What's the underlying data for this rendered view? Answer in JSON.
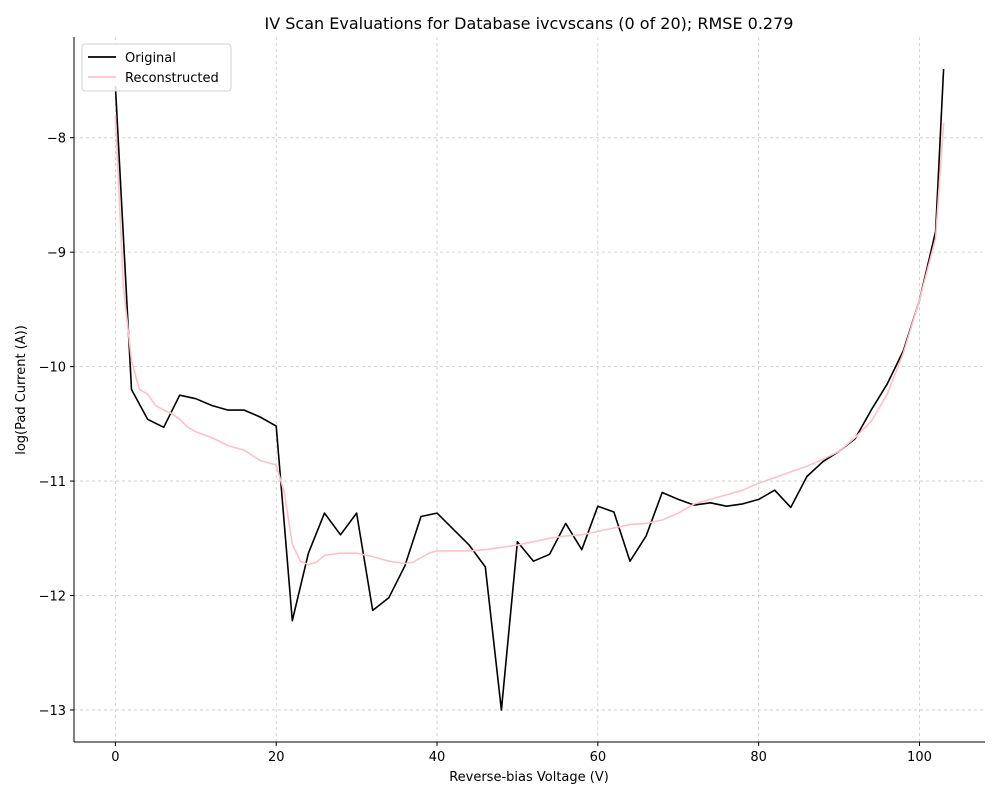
{
  "chart_data": {
    "type": "line",
    "title": "IV Scan Evaluations for Database ivcvscans (0 of 20); RMSE 0.279",
    "xlabel": "Reverse-bias Voltage (V)",
    "ylabel": "log(Pad Current (A))",
    "xlim": [
      -5.15,
      108.15
    ],
    "ylim": [
      -13.28,
      -7.12
    ],
    "xticks": [
      0,
      20,
      40,
      60,
      80,
      100
    ],
    "yticks": [
      -13,
      -12,
      -11,
      -10,
      -9,
      -8
    ],
    "xtick_labels": [
      "0",
      "20",
      "40",
      "60",
      "80",
      "100"
    ],
    "ytick_labels": [
      "−13",
      "−12",
      "−11",
      "−10",
      "−9",
      "−8"
    ],
    "grid": true,
    "legend_position": "top-left",
    "series": [
      {
        "name": "Original",
        "color": "#000000",
        "x": [
          0,
          2,
          4,
          6,
          8,
          10,
          12,
          14,
          16,
          18,
          20,
          22,
          24,
          26,
          28,
          30,
          32,
          34,
          36,
          38,
          40,
          42,
          44,
          46,
          48,
          50,
          52,
          54,
          56,
          58,
          60,
          62,
          64,
          66,
          68,
          70,
          72,
          74,
          76,
          78,
          80,
          82,
          84,
          86,
          88,
          90,
          92,
          94,
          96,
          98,
          100,
          102,
          103
        ],
        "y": [
          -7.55,
          -10.2,
          -10.46,
          -10.53,
          -10.25,
          -10.28,
          -10.34,
          -10.38,
          -10.38,
          -10.44,
          -10.52,
          -12.22,
          -11.63,
          -11.28,
          -11.47,
          -11.28,
          -12.13,
          -12.02,
          -11.74,
          -11.31,
          -11.28,
          -11.42,
          -11.56,
          -11.75,
          -13.0,
          -11.53,
          -11.7,
          -11.64,
          -11.37,
          -11.6,
          -11.22,
          -11.27,
          -11.7,
          -11.48,
          -11.1,
          -11.16,
          -11.21,
          -11.19,
          -11.22,
          -11.2,
          -11.16,
          -11.08,
          -11.23,
          -10.96,
          -10.83,
          -10.74,
          -10.63,
          -10.38,
          -10.15,
          -9.86,
          -9.42,
          -8.82,
          -7.4
        ]
      },
      {
        "name": "Reconstructed",
        "color": "#ffc0cb",
        "x": [
          0,
          1,
          2,
          3,
          4,
          5,
          6,
          7,
          8,
          9,
          10,
          12,
          14,
          16,
          18,
          19,
          20,
          21,
          22,
          23,
          24,
          25,
          26,
          28,
          30,
          32,
          34,
          36,
          37,
          38,
          39,
          40,
          42,
          44,
          46,
          48,
          50,
          52,
          54,
          56,
          58,
          60,
          62,
          64,
          66,
          68,
          70,
          72,
          74,
          76,
          78,
          80,
          82,
          84,
          86,
          88,
          90,
          92,
          94,
          96,
          98,
          100,
          102,
          103
        ],
        "y": [
          -7.8,
          -9.3,
          -9.95,
          -10.2,
          -10.24,
          -10.34,
          -10.38,
          -10.41,
          -10.46,
          -10.53,
          -10.57,
          -10.62,
          -10.69,
          -10.73,
          -10.82,
          -10.84,
          -10.86,
          -11.1,
          -11.55,
          -11.7,
          -11.73,
          -11.71,
          -11.65,
          -11.63,
          -11.63,
          -11.66,
          -11.7,
          -11.72,
          -11.71,
          -11.67,
          -11.63,
          -11.61,
          -11.61,
          -11.61,
          -11.6,
          -11.58,
          -11.56,
          -11.53,
          -11.5,
          -11.48,
          -11.47,
          -11.44,
          -11.41,
          -11.38,
          -11.37,
          -11.34,
          -11.28,
          -11.2,
          -11.16,
          -11.12,
          -11.08,
          -11.02,
          -10.97,
          -10.92,
          -10.87,
          -10.81,
          -10.74,
          -10.62,
          -10.48,
          -10.24,
          -9.88,
          -9.42,
          -8.88,
          -7.87
        ]
      }
    ]
  }
}
